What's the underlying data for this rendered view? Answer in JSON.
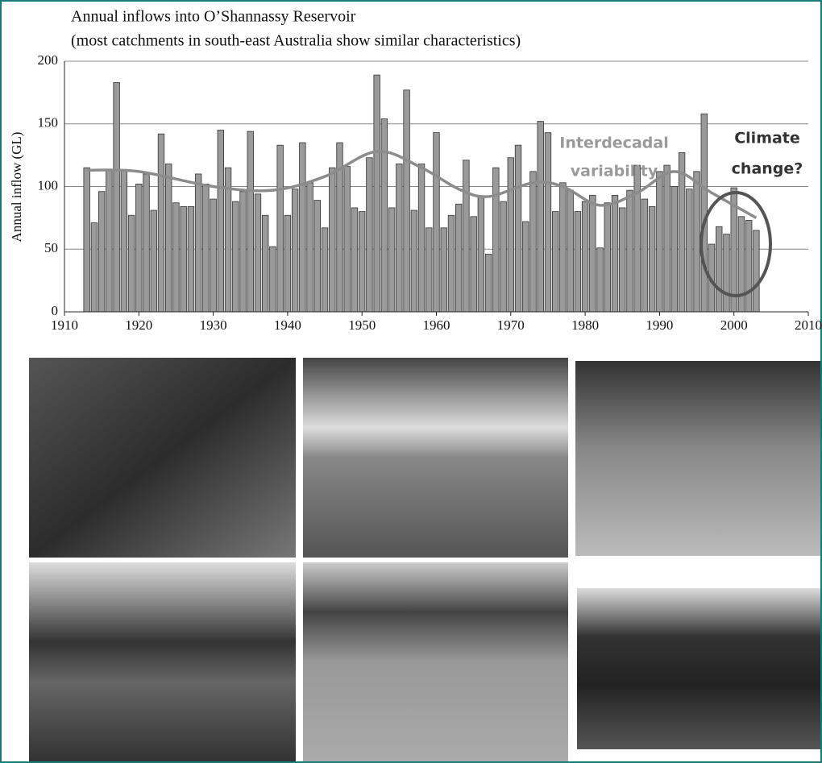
{
  "chart_data": {
    "type": "bar",
    "title": "Annual inflows into O’Shannassy Reservoir",
    "subtitle": "(most catchments in south-east Australia show similar characteristics)",
    "y_label": "Annual inflow (GL)",
    "x": [
      1913,
      1914,
      1915,
      1916,
      1917,
      1918,
      1919,
      1920,
      1921,
      1922,
      1923,
      1924,
      1925,
      1926,
      1927,
      1928,
      1929,
      1930,
      1931,
      1932,
      1933,
      1934,
      1935,
      1936,
      1937,
      1938,
      1939,
      1940,
      1941,
      1942,
      1943,
      1944,
      1945,
      1946,
      1947,
      1948,
      1949,
      1950,
      1951,
      1952,
      1953,
      1954,
      1955,
      1956,
      1957,
      1958,
      1959,
      1960,
      1961,
      1962,
      1963,
      1964,
      1965,
      1966,
      1967,
      1968,
      1969,
      1970,
      1971,
      1972,
      1973,
      1974,
      1975,
      1976,
      1977,
      1978,
      1979,
      1980,
      1981,
      1982,
      1983,
      1984,
      1985,
      1986,
      1987,
      1988,
      1989,
      1990,
      1991,
      1992,
      1993,
      1994,
      1995,
      1996,
      1997,
      1998,
      1999,
      2000,
      2001,
      2002,
      2003
    ],
    "values": [
      115,
      71,
      96,
      113,
      183,
      113,
      77,
      102,
      110,
      81,
      142,
      118,
      87,
      84,
      84,
      110,
      102,
      90,
      145,
      115,
      88,
      96,
      144,
      94,
      77,
      52,
      133,
      77,
      98,
      135,
      103,
      89,
      67,
      115,
      135,
      116,
      83,
      80,
      123,
      189,
      154,
      83,
      118,
      177,
      81,
      118,
      67,
      143,
      67,
      77,
      86,
      121,
      76,
      92,
      46,
      115,
      88,
      123,
      133,
      72,
      112,
      152,
      143,
      80,
      103,
      97,
      80,
      88,
      93,
      51,
      87,
      93,
      83,
      97,
      117,
      90,
      84,
      112,
      117,
      100,
      127,
      98,
      112,
      158,
      54,
      68,
      62,
      99,
      76,
      73,
      65
    ],
    "color": "#9a9a9a",
    "trend": {
      "x": [
        1913,
        1920,
        1930,
        1938,
        1945,
        1952,
        1958,
        1963,
        1967,
        1973,
        1977,
        1982,
        1987,
        1992,
        1997,
        2003
      ],
      "values": [
        113,
        112,
        100,
        97,
        108,
        128,
        115,
        98,
        92,
        103,
        100,
        85,
        95,
        112,
        95,
        75
      ],
      "color": "#8c8c8c"
    },
    "annotations": [
      "Interdecadal",
      "variability",
      "Climate",
      "change?"
    ],
    "xlim": [
      1910,
      2010
    ],
    "xticks": [
      1910,
      1920,
      1930,
      1940,
      1950,
      1960,
      1970,
      1980,
      1990,
      2000,
      2010
    ],
    "ylim": [
      0,
      200
    ],
    "yticks": [
      0,
      50,
      100,
      150,
      200
    ],
    "grid": true
  }
}
